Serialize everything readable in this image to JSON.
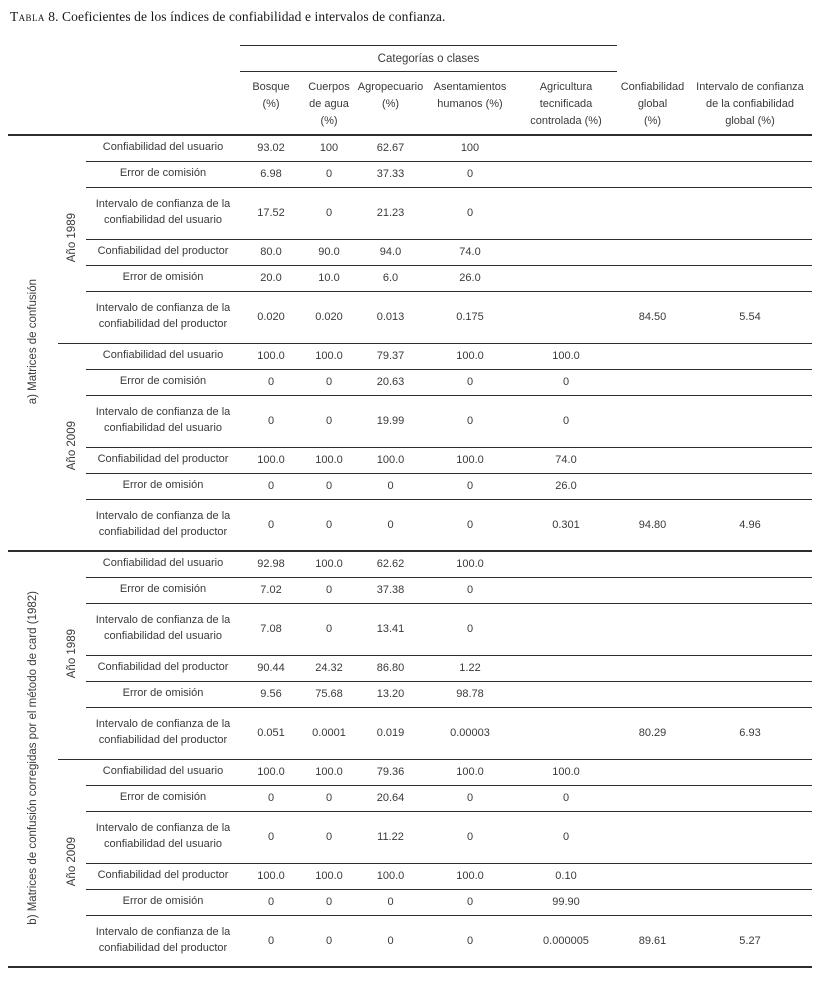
{
  "title": {
    "smallcaps": "Tabla",
    "rest": "8. Coeficientes de los índices de confiabilidad e intervalos de confianza."
  },
  "table": {
    "spanner": "Categorías o clases",
    "columns": [
      "Bosque\n(%)",
      "Cuerpos\nde agua\n(%)",
      "Agropecuario\n(%)",
      "Asentamientos\nhumanos (%)",
      "Agricultura\ntecnificada\ncontrolada (%)",
      "Confiabilidad\nglobal\n(%)",
      "Intervalo de confianza\nde la confiabilidad\nglobal (%)"
    ],
    "sections": [
      {
        "label": "a) Matrices de confusión",
        "groups": [
          {
            "year": "Año 1989",
            "rows": [
              {
                "label": "Confiabilidad del usuario",
                "values": [
                  "93.02",
                  "100",
                  "62.67",
                  "100",
                  "",
                  "",
                  ""
                ]
              },
              {
                "label": "Error de comisión",
                "values": [
                  "6.98",
                  "0",
                  "37.33",
                  "0",
                  "",
                  "",
                  ""
                ]
              },
              {
                "label": "Intervalo de confianza de la confiabilidad del usuario",
                "values": [
                  "17.52",
                  "0",
                  "21.23",
                  "0",
                  "",
                  "",
                  ""
                ]
              },
              {
                "label": "Confiabilidad del productor",
                "values": [
                  "80.0",
                  "90.0",
                  "94.0",
                  "74.0",
                  "",
                  "",
                  ""
                ]
              },
              {
                "label": "Error de omisión",
                "values": [
                  "20.0",
                  "10.0",
                  "6.0",
                  "26.0",
                  "",
                  "",
                  ""
                ]
              },
              {
                "label": "Intervalo de confianza de la confiabilidad del productor",
                "values": [
                  "0.020",
                  "0.020",
                  "0.013",
                  "0.175",
                  "",
                  "84.50",
                  "5.54"
                ]
              }
            ]
          },
          {
            "year": "Año 2009",
            "rows": [
              {
                "label": "Confiabilidad del usuario",
                "values": [
                  "100.0",
                  "100.0",
                  "79.37",
                  "100.0",
                  "100.0",
                  "",
                  ""
                ]
              },
              {
                "label": "Error de comisión",
                "values": [
                  "0",
                  "0",
                  "20.63",
                  "0",
                  "0",
                  "",
                  ""
                ]
              },
              {
                "label": "Intervalo de confianza de la confiabilidad del usuario",
                "values": [
                  "0",
                  "0",
                  "19.99",
                  "0",
                  "0",
                  "",
                  ""
                ]
              },
              {
                "label": "Confiabilidad del productor",
                "values": [
                  "100.0",
                  "100.0",
                  "100.0",
                  "100.0",
                  "74.0",
                  "",
                  ""
                ]
              },
              {
                "label": "Error de omisión",
                "values": [
                  "0",
                  "0",
                  "0",
                  "0",
                  "26.0",
                  "",
                  ""
                ]
              },
              {
                "label": "Intervalo de confianza de la confiabilidad del productor",
                "values": [
                  "0",
                  "0",
                  "0",
                  "0",
                  "0.301",
                  "94.80",
                  "4.96"
                ]
              }
            ]
          }
        ]
      },
      {
        "label": "b) Matrices de confusión corregidas por el método de card (1982)",
        "groups": [
          {
            "year": "Año 1989",
            "rows": [
              {
                "label": "Confiabilidad del usuario",
                "values": [
                  "92.98",
                  "100.0",
                  "62.62",
                  "100.0",
                  "",
                  "",
                  ""
                ]
              },
              {
                "label": "Error de comisión",
                "values": [
                  "7.02",
                  "0",
                  "37.38",
                  "0",
                  "",
                  "",
                  ""
                ]
              },
              {
                "label": "Intervalo de confianza de la confiabilidad del usuario",
                "values": [
                  "7.08",
                  "0",
                  "13.41",
                  "0",
                  "",
                  "",
                  ""
                ]
              },
              {
                "label": "Confiabilidad del productor",
                "values": [
                  "90.44",
                  "24.32",
                  "86.80",
                  "1.22",
                  "",
                  "",
                  ""
                ]
              },
              {
                "label": "Error de omisión",
                "values": [
                  "9.56",
                  "75.68",
                  "13.20",
                  "98.78",
                  "",
                  "",
                  ""
                ]
              },
              {
                "label": "Intervalo de confianza de la confiabilidad del productor",
                "values": [
                  "0.051",
                  "0.0001",
                  "0.019",
                  "0.00003",
                  "",
                  "80.29",
                  "6.93"
                ]
              }
            ]
          },
          {
            "year": "Año 2009",
            "rows": [
              {
                "label": "Confiabilidad del usuario",
                "values": [
                  "100.0",
                  "100.0",
                  "79.36",
                  "100.0",
                  "100.0",
                  "",
                  ""
                ]
              },
              {
                "label": "Error de comisión",
                "values": [
                  "0",
                  "0",
                  "20.64",
                  "0",
                  "0",
                  "",
                  ""
                ]
              },
              {
                "label": "Intervalo de confianza de la confiabilidad del usuario",
                "values": [
                  "0",
                  "0",
                  "11.22",
                  "0",
                  "0",
                  "",
                  ""
                ]
              },
              {
                "label": "Confiabilidad del productor",
                "values": [
                  "100.0",
                  "100.0",
                  "100.0",
                  "100.0",
                  "0.10",
                  "",
                  ""
                ]
              },
              {
                "label": "Error de omisión",
                "values": [
                  "0",
                  "0",
                  "0",
                  "0",
                  "99.90",
                  "",
                  ""
                ]
              },
              {
                "label": "Intervalo de confianza de la confiabilidad del productor",
                "values": [
                  "0",
                  "0",
                  "0",
                  "0",
                  "0.000005",
                  "89.61",
                  "5.27"
                ]
              }
            ]
          }
        ]
      }
    ]
  }
}
